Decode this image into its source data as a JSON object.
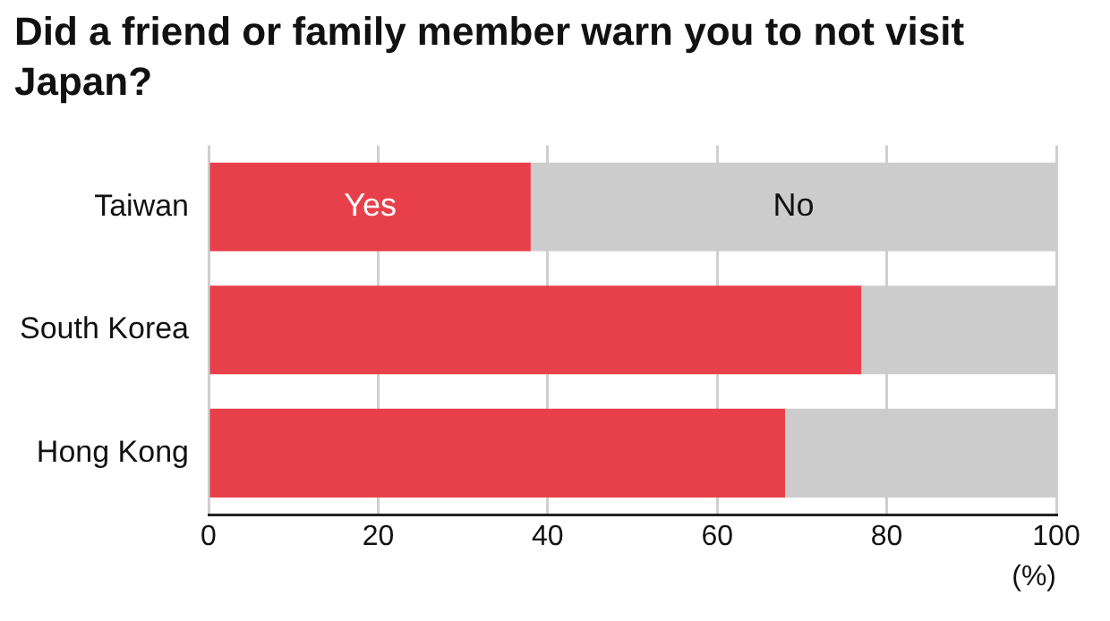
{
  "chart_data": {
    "type": "bar",
    "orientation": "horizontal",
    "stacked": true,
    "title": "Did a friend or family member warn you to not visit Japan?",
    "xlabel": "(%)",
    "categories": [
      "Taiwan",
      "South Korea",
      "Hong Kong"
    ],
    "series": [
      {
        "name": "Yes",
        "color": "#e8404a",
        "values": [
          38,
          77,
          68
        ]
      },
      {
        "name": "No",
        "color": "#cccccc",
        "values": [
          62,
          23,
          32
        ]
      }
    ],
    "xlim": [
      0,
      100
    ],
    "xticks": [
      0,
      20,
      40,
      60,
      80,
      100
    ],
    "grid": "x",
    "legend": false
  }
}
